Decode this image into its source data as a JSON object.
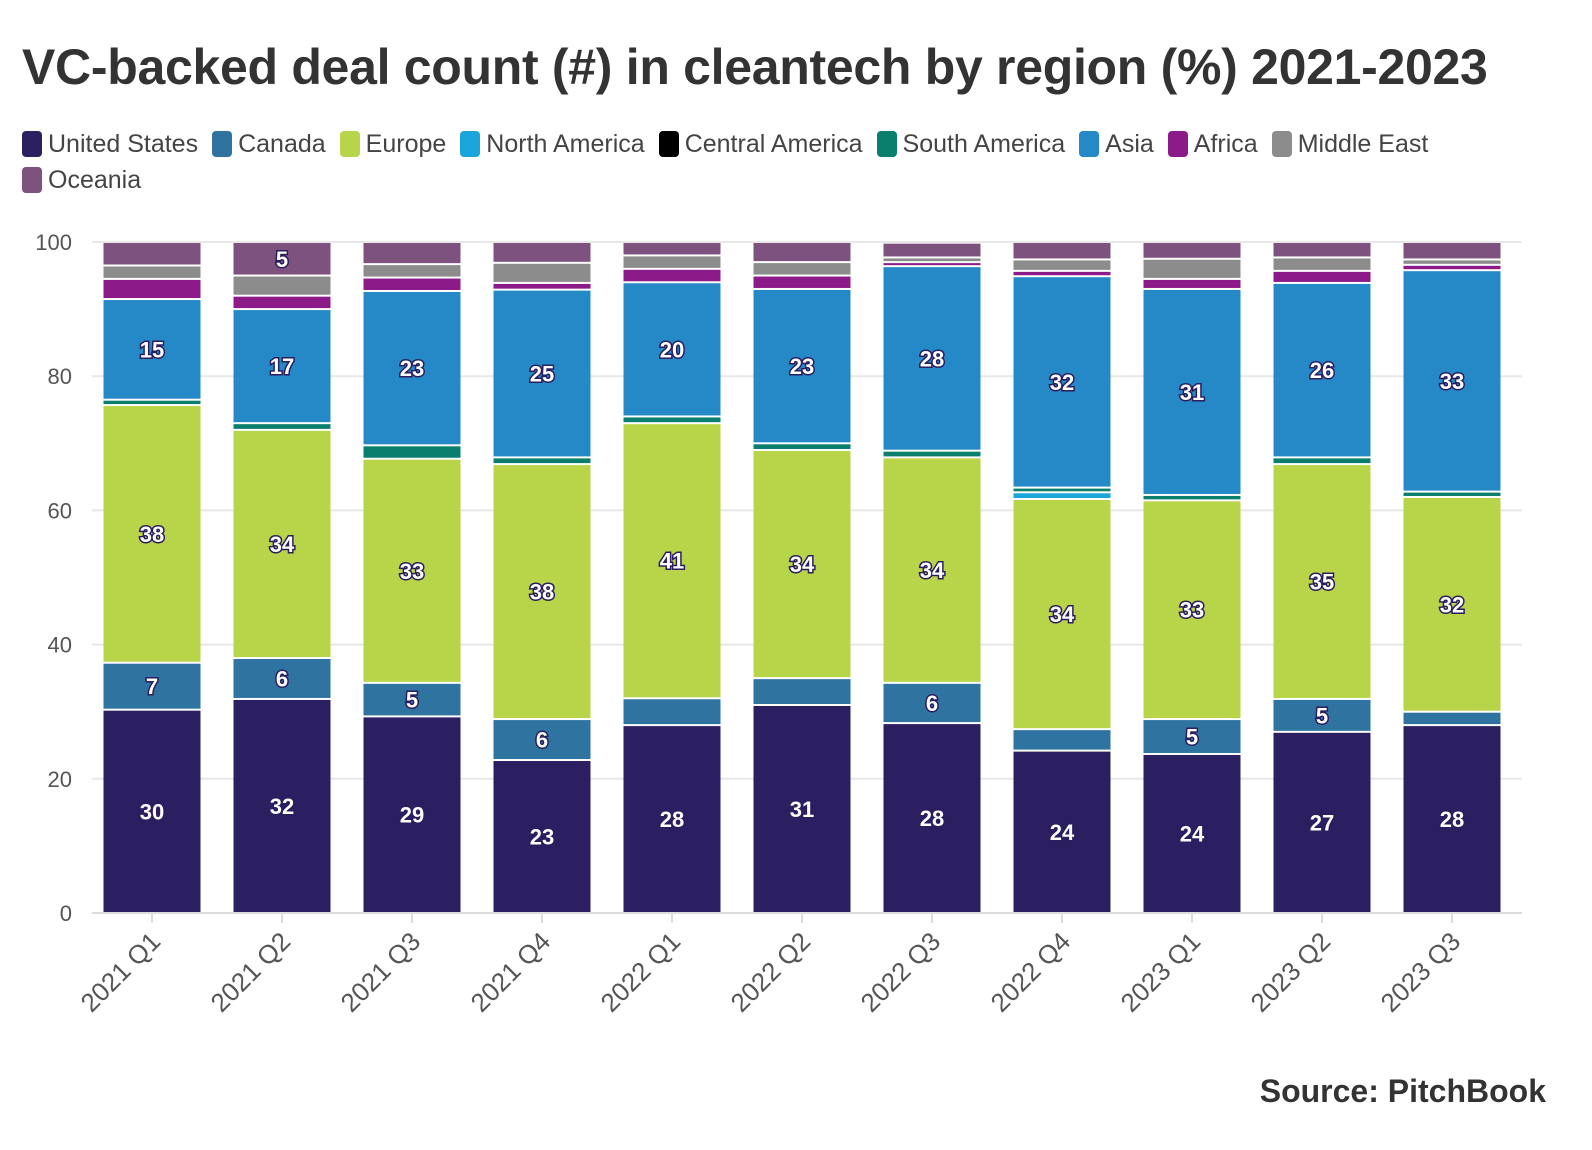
{
  "title": "VC-backed deal count (#) in cleantech by region (%) 2021-2023",
  "source": "Source: PitchBook",
  "chart_data": {
    "type": "bar",
    "stacked": true,
    "title": "VC-backed deal count (#) in cleantech by region (%) 2021-2023",
    "xlabel": "",
    "ylabel": "",
    "ylim": [
      0,
      100
    ],
    "yticks": [
      0,
      20,
      40,
      60,
      80,
      100
    ],
    "grid": true,
    "legend_position": "top-left",
    "categories": [
      "2021 Q1",
      "2021 Q2",
      "2021 Q3",
      "2021 Q4",
      "2022 Q1",
      "2022 Q2",
      "2022 Q3",
      "2022 Q4",
      "2023 Q1",
      "2023 Q2",
      "2023 Q3"
    ],
    "series": [
      {
        "name": "United States",
        "color": "#2b1f62",
        "values": [
          30.3,
          31.9,
          29.3,
          22.8,
          28,
          31,
          28.3,
          24.2,
          23.7,
          27,
          28
        ]
      },
      {
        "name": "Canada",
        "color": "#2f73a0",
        "values": [
          7,
          6.1,
          5,
          6.1,
          4,
          4,
          6,
          3.2,
          5.2,
          4.9,
          2
        ]
      },
      {
        "name": "Europe",
        "color": "#b8d54a",
        "values": [
          38.4,
          34,
          33.4,
          38,
          41,
          34,
          33.6,
          34.3,
          32.6,
          35,
          32
        ]
      },
      {
        "name": "North America",
        "color": "#1aa6d8",
        "values": [
          0,
          0,
          0,
          0,
          0,
          0,
          0,
          1,
          0,
          0,
          0
        ]
      },
      {
        "name": "Central America",
        "color": "#000000",
        "values": [
          0,
          0,
          0,
          0,
          0,
          0,
          0,
          0,
          0,
          0,
          0
        ]
      },
      {
        "name": "South America",
        "color": "#0b7f6e",
        "values": [
          0.8,
          1,
          2,
          1,
          1,
          1,
          1,
          0.7,
          0.8,
          1,
          0.8
        ]
      },
      {
        "name": "Asia",
        "color": "#2589c7",
        "values": [
          15,
          17,
          23,
          25,
          20,
          23,
          27.5,
          31.5,
          30.7,
          26,
          33
        ]
      },
      {
        "name": "Africa",
        "color": "#8c1a89",
        "values": [
          3,
          2,
          2,
          1,
          2,
          2,
          0.6,
          0.8,
          1.5,
          1.8,
          0.8
        ]
      },
      {
        "name": "Middle East",
        "color": "#8c8c8c",
        "values": [
          2,
          3,
          2,
          3,
          2,
          2,
          0.7,
          1.7,
          3,
          2,
          0.8
        ]
      },
      {
        "name": "Oceania",
        "color": "#7d527e",
        "values": [
          3.5,
          5,
          3.3,
          3.1,
          2,
          3,
          2.2,
          2.6,
          2.5,
          2.3,
          2.6
        ]
      }
    ],
    "data_label_min": 4.5
  }
}
